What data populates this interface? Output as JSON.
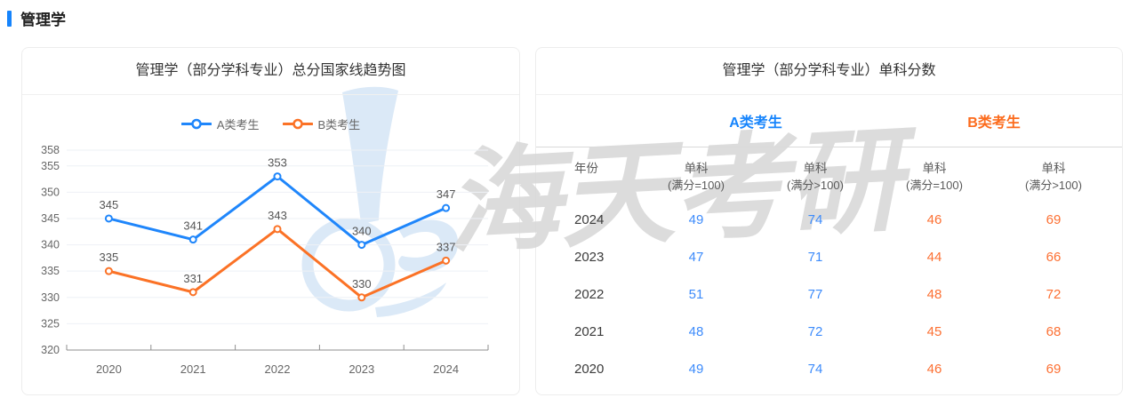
{
  "header": {
    "title": "管理学",
    "accent_color": "#1684fc"
  },
  "chart_card": {
    "title": "管理学（部分学科专业）总分国家线趋势图"
  },
  "chart_data": {
    "type": "line",
    "title": "管理学（部分学科专业）总分国家线趋势图",
    "categories": [
      "2020",
      "2021",
      "2022",
      "2023",
      "2024"
    ],
    "series": [
      {
        "name": "A类考生",
        "color": "#1f86fb",
        "values": [
          345,
          341,
          353,
          340,
          347
        ]
      },
      {
        "name": "B类考生",
        "color": "#fb7226",
        "values": [
          335,
          331,
          343,
          330,
          337
        ]
      }
    ],
    "y_ticks": [
      320,
      325,
      330,
      335,
      340,
      345,
      350,
      355,
      358
    ],
    "ylim": [
      320,
      358
    ],
    "grid": true,
    "legend_position": "top",
    "point_labels": true,
    "grid_color": "#eef1f6",
    "axis_color": "#8f8f8f"
  },
  "table_card": {
    "title": "管理学（部分学科专业）单科分数",
    "group_a": "A类考生",
    "group_b": "B类考生",
    "group_a_color": "#1684fc",
    "group_b_color": "#fc6b1c",
    "value_a_color": "#3d8bfb",
    "value_b_color": "#fc7033",
    "columns": [
      "年份",
      "单科",
      "单科",
      "单科",
      "单科"
    ],
    "col_sub": [
      "",
      "(满分=100)",
      "(满分>100)",
      "(满分=100)",
      "(满分>100)"
    ],
    "rows": [
      [
        "2024",
        "49",
        "74",
        "46",
        "69"
      ],
      [
        "2023",
        "47",
        "71",
        "44",
        "66"
      ],
      [
        "2022",
        "51",
        "77",
        "48",
        "72"
      ],
      [
        "2021",
        "48",
        "72",
        "45",
        "68"
      ],
      [
        "2020",
        "49",
        "74",
        "46",
        "69"
      ]
    ]
  },
  "watermark": {
    "text": "海天考研",
    "logo_color": "#dbe9f7",
    "text_color": "#d7d7d7"
  }
}
